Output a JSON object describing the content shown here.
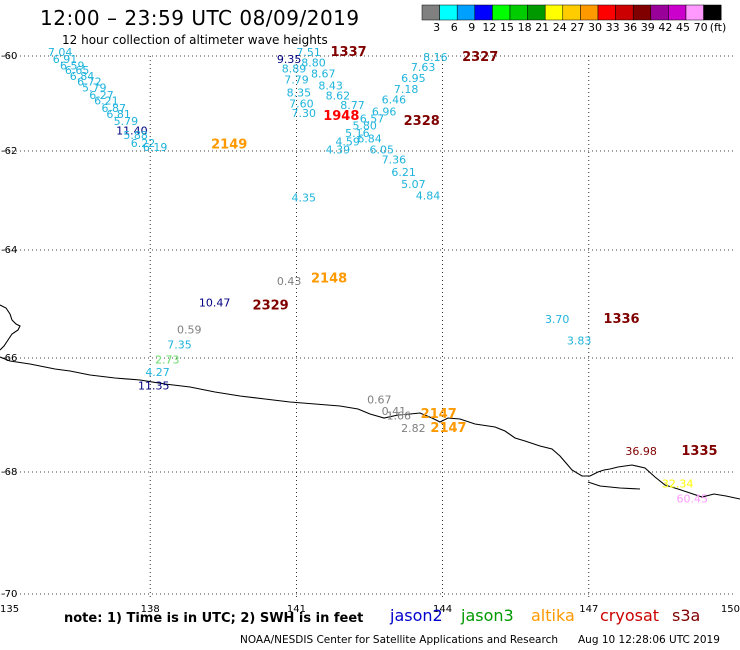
{
  "header": {
    "title": "12:00 – 23:59 UTC 08/09/2019",
    "subtitle": "12 hour collection of altimeter wave heights"
  },
  "colorbar": {
    "unit": "(ft)",
    "boxes": [
      {
        "color": "#808080",
        "label": "3"
      },
      {
        "color": "#00ffff",
        "label": "6"
      },
      {
        "color": "#00a0ff",
        "label": "9"
      },
      {
        "color": "#0000ff",
        "label": "12"
      },
      {
        "color": "#00ff00",
        "label": "15"
      },
      {
        "color": "#00cc00",
        "label": "18"
      },
      {
        "color": "#009900",
        "label": "21"
      },
      {
        "color": "#ffff00",
        "label": "24"
      },
      {
        "color": "#ffcc00",
        "label": "27"
      },
      {
        "color": "#ff9900",
        "label": "30"
      },
      {
        "color": "#ff0000",
        "label": "33"
      },
      {
        "color": "#cc0000",
        "label": "36"
      },
      {
        "color": "#800000",
        "label": "39"
      },
      {
        "color": "#990099",
        "label": "42"
      },
      {
        "color": "#cc00cc",
        "label": "45"
      },
      {
        "color": "#ff99ff",
        "label": "70"
      },
      {
        "color": "#000000",
        "label": ""
      }
    ]
  },
  "axes": {
    "lat_ticks": [
      "-60",
      "-62",
      "-64",
      "-66",
      "-68",
      "-70"
    ],
    "lon_ticks": [
      "135",
      "138",
      "141",
      "144",
      "147",
      "150"
    ]
  },
  "observations": [
    {
      "text": "7.04",
      "lon": 135.9,
      "lat": -60.0,
      "color": "#1eb4dc"
    },
    {
      "text": "6.91",
      "lon": 136.0,
      "lat": -60.15,
      "color": "#1eb4dc"
    },
    {
      "text": "6.59",
      "lon": 136.15,
      "lat": -60.28,
      "color": "#1eb4dc"
    },
    {
      "text": "6.65",
      "lon": 136.25,
      "lat": -60.38,
      "color": "#1eb4dc"
    },
    {
      "text": "6.84",
      "lon": 136.35,
      "lat": -60.5,
      "color": "#1eb4dc"
    },
    {
      "text": "6.72",
      "lon": 136.5,
      "lat": -60.62,
      "color": "#1eb4dc"
    },
    {
      "text": "5.79",
      "lon": 136.6,
      "lat": -60.75,
      "color": "#1eb4dc"
    },
    {
      "text": "6.27",
      "lon": 136.75,
      "lat": -60.9,
      "color": "#1eb4dc"
    },
    {
      "text": "6.21",
      "lon": 136.85,
      "lat": -61.02,
      "color": "#1eb4dc"
    },
    {
      "text": "6.87",
      "lon": 137.0,
      "lat": -61.18,
      "color": "#1eb4dc"
    },
    {
      "text": "6.81",
      "lon": 137.1,
      "lat": -61.3,
      "color": "#1eb4dc"
    },
    {
      "text": "5.79",
      "lon": 137.25,
      "lat": -61.45,
      "color": "#1eb4dc"
    },
    {
      "text": "11.40",
      "lon": 137.3,
      "lat": -61.65,
      "color": "#000080"
    },
    {
      "text": "5.88",
      "lon": 137.45,
      "lat": -61.75,
      "color": "#1eb4dc"
    },
    {
      "text": "6.22",
      "lon": 137.6,
      "lat": -61.92,
      "color": "#1eb4dc"
    },
    {
      "text": "6.19",
      "lon": 137.85,
      "lat": -62.0,
      "color": "#1eb4dc"
    },
    {
      "text": "7.51",
      "lon": 141.0,
      "lat": -60.0,
      "color": "#1eb4dc"
    },
    {
      "text": "9.35",
      "lon": 140.6,
      "lat": -60.15,
      "color": "#000080"
    },
    {
      "text": "8.80",
      "lon": 141.1,
      "lat": -60.22,
      "color": "#1eb4dc"
    },
    {
      "text": "8.89",
      "lon": 140.7,
      "lat": -60.35,
      "color": "#1eb4dc"
    },
    {
      "text": "8.67",
      "lon": 141.3,
      "lat": -60.45,
      "color": "#1eb4dc"
    },
    {
      "text": "7.79",
      "lon": 140.75,
      "lat": -60.58,
      "color": "#1eb4dc"
    },
    {
      "text": "8.43",
      "lon": 141.45,
      "lat": -60.7,
      "color": "#1eb4dc"
    },
    {
      "text": "8.35",
      "lon": 140.8,
      "lat": -60.85,
      "color": "#1eb4dc"
    },
    {
      "text": "8.62",
      "lon": 141.6,
      "lat": -60.92,
      "color": "#1eb4dc"
    },
    {
      "text": "7.60",
      "lon": 140.85,
      "lat": -61.08,
      "color": "#1eb4dc"
    },
    {
      "text": "8.77",
      "lon": 141.9,
      "lat": -61.12,
      "color": "#1eb4dc"
    },
    {
      "text": "7.30",
      "lon": 140.9,
      "lat": -61.28,
      "color": "#1eb4dc"
    },
    {
      "text": "8.16",
      "lon": 143.6,
      "lat": -60.1,
      "color": "#1eb4dc"
    },
    {
      "text": "7.63",
      "lon": 143.35,
      "lat": -60.32,
      "color": "#1eb4dc"
    },
    {
      "text": "6.95",
      "lon": 143.15,
      "lat": -60.55,
      "color": "#1eb4dc"
    },
    {
      "text": "7.18",
      "lon": 143.0,
      "lat": -60.78,
      "color": "#1eb4dc"
    },
    {
      "text": "6.46",
      "lon": 142.75,
      "lat": -61.0,
      "color": "#1eb4dc"
    },
    {
      "text": "6.96",
      "lon": 142.55,
      "lat": -61.25,
      "color": "#1eb4dc"
    },
    {
      "text": "6.57",
      "lon": 142.3,
      "lat": -61.4,
      "color": "#1eb4dc"
    },
    {
      "text": "5.80",
      "lon": 142.15,
      "lat": -61.55,
      "color": "#1eb4dc"
    },
    {
      "text": "5.16",
      "lon": 142.0,
      "lat": -61.7,
      "color": "#1eb4dc"
    },
    {
      "text": "6.84",
      "lon": 142.25,
      "lat": -61.82,
      "color": "#1eb4dc"
    },
    {
      "text": "4.59",
      "lon": 141.8,
      "lat": -61.88,
      "color": "#1eb4dc"
    },
    {
      "text": "6.05",
      "lon": 142.5,
      "lat": -62.05,
      "color": "#1eb4dc"
    },
    {
      "text": "4.39",
      "lon": 141.6,
      "lat": -62.05,
      "color": "#1eb4dc"
    },
    {
      "text": "7.36",
      "lon": 142.75,
      "lat": -62.25,
      "color": "#1eb4dc"
    },
    {
      "text": "6.21",
      "lon": 142.95,
      "lat": -62.5,
      "color": "#1eb4dc"
    },
    {
      "text": "5.07",
      "lon": 143.15,
      "lat": -62.75,
      "color": "#1eb4dc"
    },
    {
      "text": "4.84",
      "lon": 143.45,
      "lat": -62.98,
      "color": "#1eb4dc"
    },
    {
      "text": "4.35",
      "lon": 140.9,
      "lat": -63.02,
      "color": "#1eb4dc"
    },
    {
      "text": "0.43",
      "lon": 140.6,
      "lat": -64.65,
      "color": "#808080"
    },
    {
      "text": "10.47",
      "lon": 139.0,
      "lat": -65.05,
      "color": "#000080"
    },
    {
      "text": "0.59",
      "lon": 138.55,
      "lat": -65.55,
      "color": "#808080"
    },
    {
      "text": "7.35",
      "lon": 138.35,
      "lat": -65.82,
      "color": "#1eb4dc"
    },
    {
      "text": "2.73",
      "lon": 138.1,
      "lat": -66.1,
      "color": "#66dd66"
    },
    {
      "text": "4.27",
      "lon": 137.9,
      "lat": -66.32,
      "color": "#1eb4dc"
    },
    {
      "text": "11.35",
      "lon": 137.75,
      "lat": -66.55,
      "color": "#000080"
    },
    {
      "text": "3.70",
      "lon": 146.1,
      "lat": -65.35,
      "color": "#1eb4dc"
    },
    {
      "text": "3.83",
      "lon": 146.55,
      "lat": -65.75,
      "color": "#1eb4dc"
    },
    {
      "text": "0.67",
      "lon": 142.45,
      "lat": -66.8,
      "color": "#808080"
    },
    {
      "text": "0.41",
      "lon": 142.75,
      "lat": -67.0,
      "color": "#808080"
    },
    {
      "text": "1.66",
      "lon": 142.85,
      "lat": -67.08,
      "color": "#808080"
    },
    {
      "text": "2.82",
      "lon": 143.15,
      "lat": -67.3,
      "color": "#808080"
    },
    {
      "text": "36.98",
      "lon": 147.75,
      "lat": -67.7,
      "color": "#800000"
    },
    {
      "text": "32.34",
      "lon": 148.5,
      "lat": -68.25,
      "color": "#ffff00"
    },
    {
      "text": "60.45",
      "lon": 148.8,
      "lat": -68.5,
      "color": "#ff99ff"
    }
  ],
  "time_labels": [
    {
      "text": "1337",
      "lon": 141.7,
      "lat": -60.0,
      "color": "#800000"
    },
    {
      "text": "2327",
      "lon": 144.4,
      "lat": -60.1,
      "color": "#800000"
    },
    {
      "text": "1948",
      "lon": 141.55,
      "lat": -61.35,
      "color": "#ff0000"
    },
    {
      "text": "2328",
      "lon": 143.2,
      "lat": -61.45,
      "color": "#800000"
    },
    {
      "text": "2149",
      "lon": 139.25,
      "lat": -61.95,
      "color": "#ff9900"
    },
    {
      "text": "2148",
      "lon": 141.3,
      "lat": -64.6,
      "color": "#ff9900"
    },
    {
      "text": "2329",
      "lon": 140.1,
      "lat": -65.1,
      "color": "#800000"
    },
    {
      "text": "1336",
      "lon": 147.3,
      "lat": -65.35,
      "color": "#800000"
    },
    {
      "text": "2147",
      "lon": 143.55,
      "lat": -67.05,
      "color": "#ff9900"
    },
    {
      "text": "2147",
      "lon": 143.75,
      "lat": -67.3,
      "color": "#ff9900"
    },
    {
      "text": "1335",
      "lon": 148.9,
      "lat": -67.7,
      "color": "#800000"
    }
  ],
  "footer": {
    "note": "note:  1) Time is in UTC;  2) SWH is in feet",
    "satellites": [
      {
        "name": "jason2",
        "color": "#0000cc"
      },
      {
        "name": "jason3",
        "color": "#009900"
      },
      {
        "name": "altika",
        "color": "#ff9900"
      },
      {
        "name": "cryosat",
        "color": "#cc0000"
      },
      {
        "name": "s3a",
        "color": "#800000"
      }
    ],
    "credit": "NOAA/NESDIS Center for Satellite Applications and Research",
    "timestamp": "Aug 10 12:28:06 UTC 2019"
  }
}
